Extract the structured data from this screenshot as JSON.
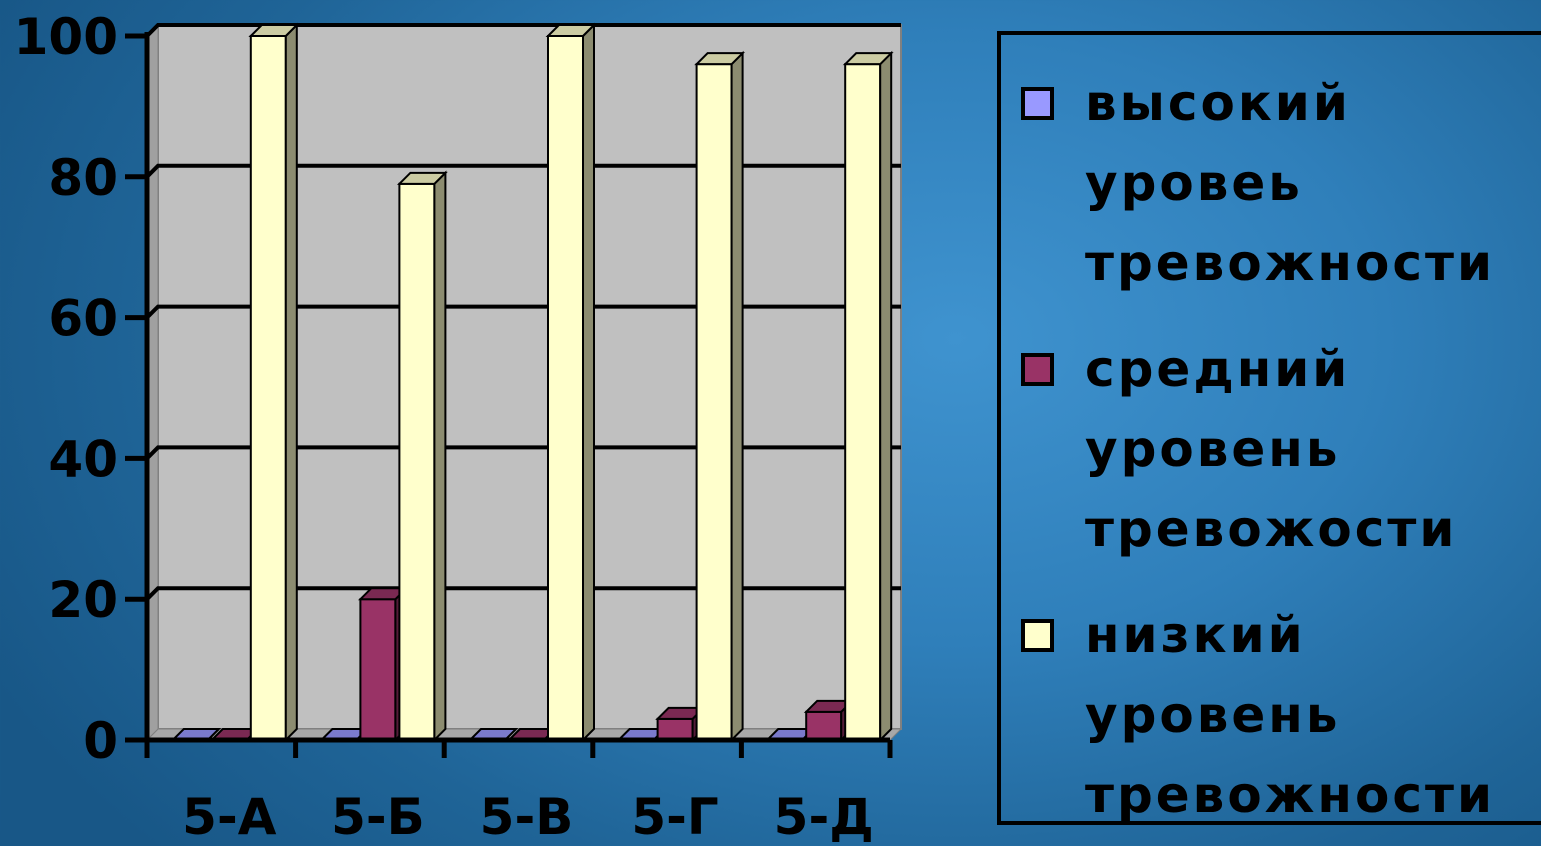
{
  "chart_data": {
    "type": "bar",
    "categories": [
      "5-А",
      "5-Б",
      "5-В",
      "5-Г",
      "5-Д"
    ],
    "series": [
      {
        "name": "высокий\nуровеь\nтревожности",
        "values": [
          0,
          0,
          0,
          0,
          0
        ],
        "color": "#9999ff"
      },
      {
        "name": "средний\nуровень\nтревожости",
        "values": [
          0,
          20,
          0,
          3,
          4
        ],
        "color": "#993366"
      },
      {
        "name": "низкий\nуровень\nтревожности",
        "values": [
          100,
          79,
          100,
          96,
          96
        ],
        "color": "#ffffcc"
      }
    ],
    "yticks": [
      "0",
      "20",
      "40",
      "60",
      "80",
      "100"
    ],
    "ylim": [
      0,
      100
    ],
    "grid": true,
    "legend_position": "right",
    "plot_background": "#c0c0c0",
    "title": "",
    "xlabel": "",
    "ylabel": ""
  }
}
